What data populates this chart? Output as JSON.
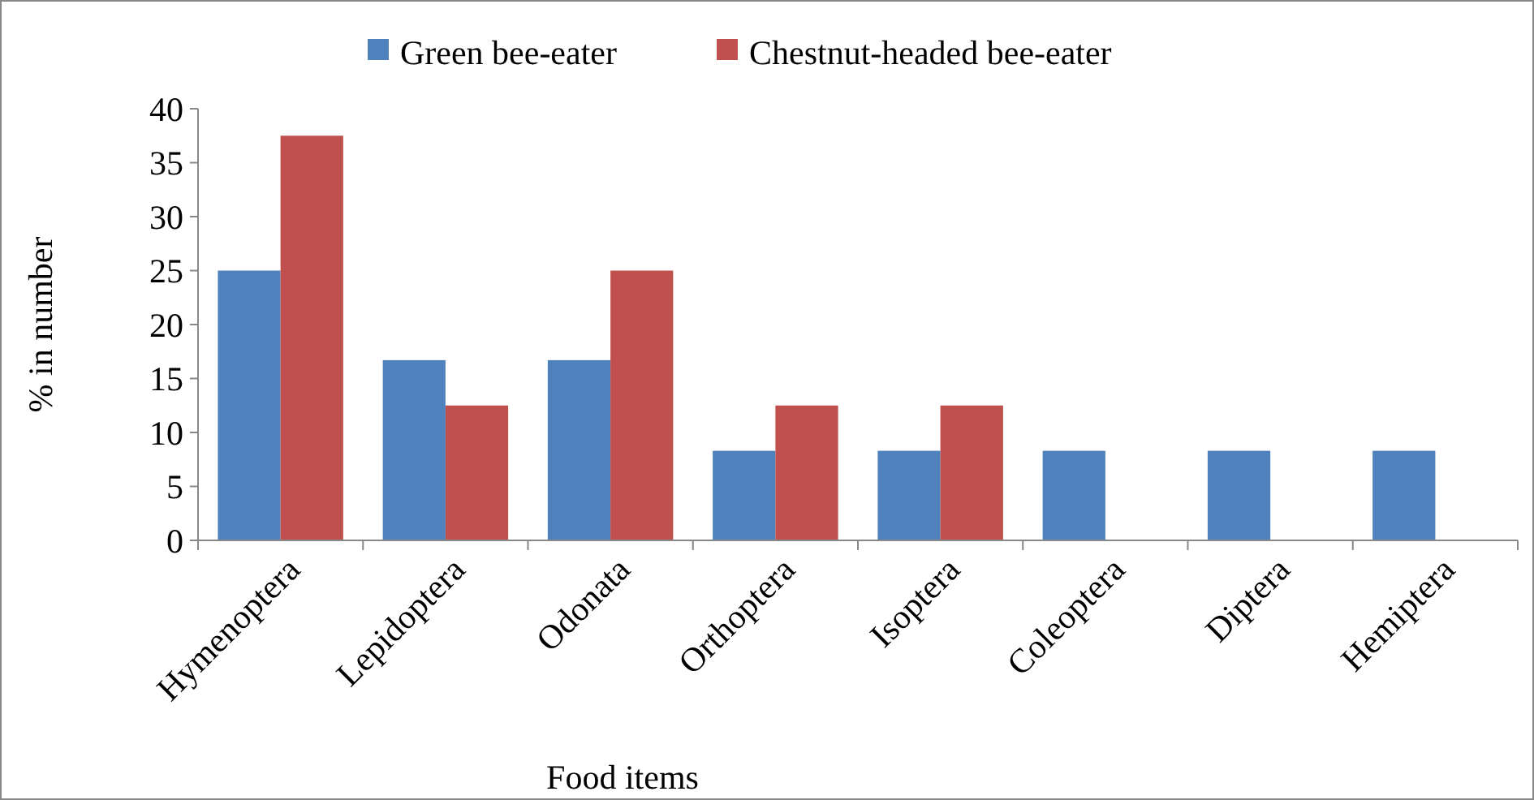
{
  "chart_data": {
    "type": "bar",
    "xlabel": "Food items",
    "ylabel": "% in number",
    "categories": [
      "Hymenoptera",
      "Lepidoptera",
      "Odonata",
      "Orthoptera",
      "Isoptera",
      "Coleoptera",
      "Diptera",
      "Hemiptera"
    ],
    "series": [
      {
        "name": "Green bee-eater",
        "color": "#4f81bd",
        "values": [
          25,
          16.7,
          16.7,
          8.3,
          8.3,
          8.3,
          8.3,
          8.3
        ]
      },
      {
        "name": "Chestnut-headed bee-eater",
        "color": "#c0504d",
        "values": [
          37.5,
          12.5,
          25,
          12.5,
          12.5,
          0,
          0,
          0
        ]
      }
    ],
    "ylim": [
      0,
      40
    ],
    "yticks": [
      0,
      5,
      10,
      15,
      20,
      25,
      30,
      35,
      40
    ],
    "grid": false,
    "legend": "top"
  }
}
